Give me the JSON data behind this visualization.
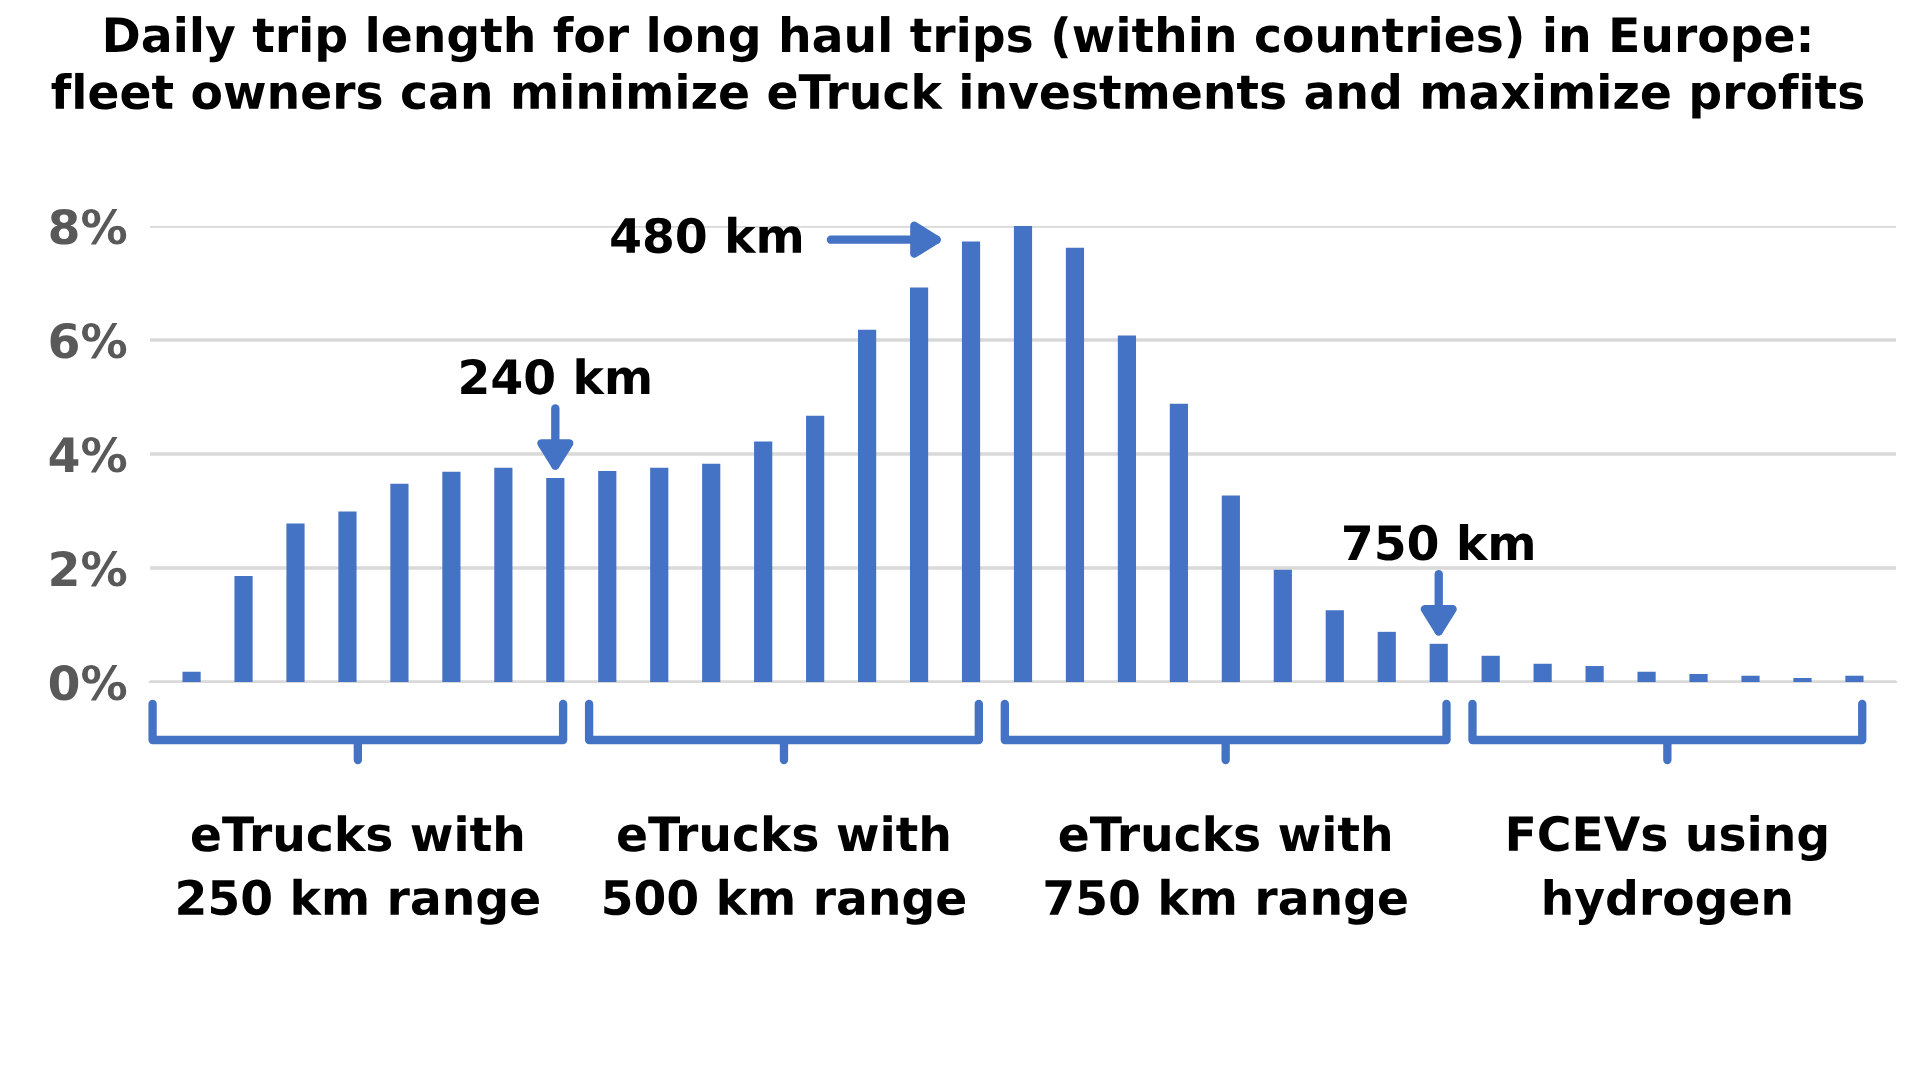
{
  "chart_data": {
    "type": "bar",
    "title": "Daily trip length for long haul trips (within countries) in Europe:\nfleet owners can minimize eTruck investments and maximize profits",
    "categories": [
      null,
      null,
      null,
      null,
      null,
      null,
      null,
      null,
      null,
      null,
      null,
      null,
      null,
      null,
      null,
      null,
      null,
      null,
      null,
      null,
      null,
      null,
      null,
      null,
      null,
      null,
      null,
      null,
      null,
      null,
      null,
      null,
      null
    ],
    "values": [
      0.18,
      1.86,
      2.78,
      2.99,
      3.48,
      3.69,
      3.76,
      3.58,
      3.7,
      3.76,
      3.83,
      4.22,
      4.67,
      6.18,
      6.92,
      7.73,
      8.0,
      7.62,
      6.08,
      4.88,
      3.27,
      1.97,
      1.26,
      0.88,
      0.67,
      0.46,
      0.32,
      0.28,
      0.18,
      0.14,
      0.11,
      0.07,
      0.11
    ],
    "color": "#4472c4",
    "ylim": [
      0,
      8
    ],
    "yticks": [
      {
        "value": 0,
        "label": "0%"
      },
      {
        "value": 2,
        "label": "2%"
      },
      {
        "value": 4,
        "label": "4%"
      },
      {
        "value": 6,
        "label": "6%"
      },
      {
        "value": 8,
        "label": "8%"
      }
    ],
    "grid": "y",
    "tick_labels": "y",
    "annotations": [
      {
        "text": "240 km",
        "y": 3.58
      },
      "480 km",
      {
        "text": "750 km",
        "y": 0.67
      },
      "eTrucks with\n250 km range",
      "eTrucks with\n500 km range",
      "eTrucks with\n750 km range",
      "FCEVs using\nhydrogen"
    ]
  }
}
